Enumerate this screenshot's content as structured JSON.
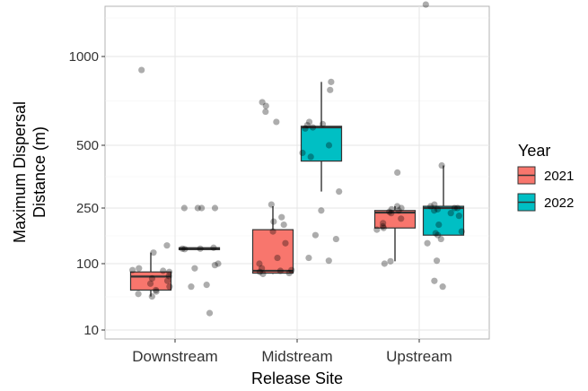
{
  "chart_data": {
    "type": "box",
    "xlabel": "Release Site",
    "ylabel_lines": [
      "Maximum Dispersal",
      "Distance (m)"
    ],
    "y_scale": "custom",
    "y_ticks": [
      10,
      100,
      250,
      500,
      1000
    ],
    "categories": [
      "Downstream",
      "Midstream",
      "Upstream"
    ],
    "legend": {
      "title": "Year",
      "position": "right",
      "entries": [
        {
          "label": "2021",
          "color": "#F8766D"
        },
        {
          "label": "2022",
          "color": "#00BFC4"
        }
      ]
    },
    "grid": true,
    "boxes": [
      {
        "category": "Downstream",
        "group": "2021",
        "whisker_low": 32,
        "q1": 40,
        "median": 64,
        "q3": 75,
        "whisker_high": 120,
        "points": [
          900,
          135,
          120,
          85,
          80,
          78,
          75,
          65,
          60,
          55,
          50,
          45,
          40,
          38,
          35,
          32
        ]
      },
      {
        "category": "Downstream",
        "group": "2022",
        "whisker_low": 126,
        "q1": 126,
        "median": 128,
        "q3": 130,
        "whisker_high": 130,
        "points": [
          250,
          250,
          250,
          250,
          130,
          128,
          128,
          127,
          100,
          95,
          85,
          48,
          45,
          18
        ]
      },
      {
        "category": "Midstream",
        "group": "2021",
        "whisker_low": 70,
        "q1": 72,
        "median": 78,
        "q3": 175,
        "whisker_high": 255,
        "points": [
          700,
          680,
          650,
          600,
          260,
          215,
          200,
          190,
          170,
          140,
          110,
          100,
          85,
          80,
          78,
          75,
          72,
          70
        ]
      },
      {
        "category": "Midstream",
        "group": "2022",
        "whisker_low": 300,
        "q1": 420,
        "median": 575,
        "q3": 580,
        "whisker_high": 820,
        "points": [
          820,
          770,
          600,
          590,
          585,
          575,
          570,
          500,
          460,
          440,
          300,
          240,
          160,
          150,
          110,
          105
        ]
      },
      {
        "category": "Upstream",
        "group": "2021",
        "whisker_low": 104,
        "q1": 180,
        "median": 232,
        "q3": 240,
        "whisker_high": 255,
        "points": [
          370,
          255,
          250,
          245,
          240,
          235,
          230,
          210,
          195,
          185,
          180,
          175,
          104,
          100
        ]
      },
      {
        "category": "Upstream",
        "group": "2022",
        "whisker_low": 160,
        "q1": 160,
        "median": 250,
        "q3": 255,
        "whisker_high": 400,
        "points": [
          1500,
          400,
          260,
          255,
          250,
          250,
          245,
          240,
          230,
          220,
          190,
          170,
          165,
          160,
          150,
          140,
          105,
          55,
          45
        ]
      }
    ]
  }
}
